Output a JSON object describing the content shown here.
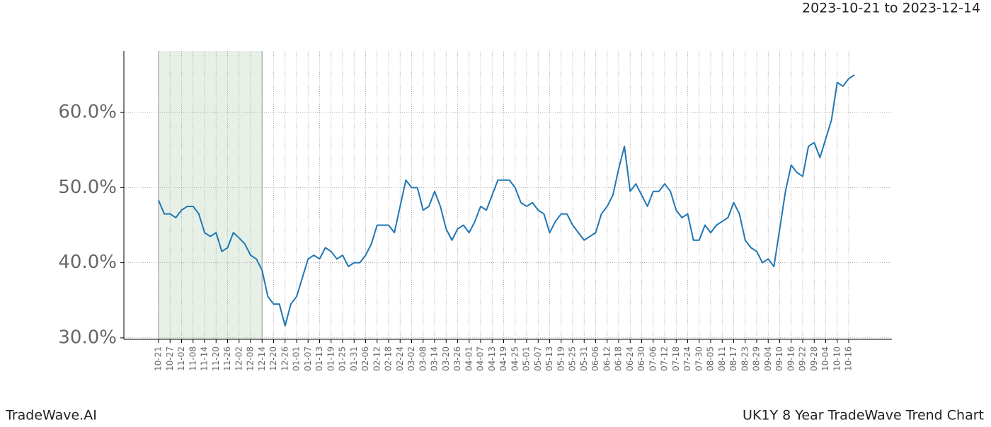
{
  "chart_data": {
    "type": "line",
    "title": "2023-10-21 to 2023-12-14",
    "footer_left": "TradeWave.AI",
    "footer_right": "UK1Y 8 Year TradeWave Trend Chart",
    "categories": [
      "10-21",
      null,
      "10-27",
      null,
      "11-02",
      null,
      "11-08",
      null,
      "11-14",
      null,
      "11-20",
      null,
      "11-26",
      null,
      "12-02",
      null,
      "12-08",
      null,
      "12-14",
      null,
      "12-20",
      null,
      "12-26",
      null,
      "01-01",
      null,
      "01-07",
      null,
      "01-13",
      null,
      "01-19",
      null,
      "01-25",
      null,
      "01-31",
      null,
      "02-06",
      null,
      "02-12",
      null,
      "02-18",
      null,
      "02-24",
      null,
      "03-02",
      null,
      "03-08",
      null,
      "03-14",
      null,
      "03-20",
      null,
      "03-26",
      null,
      "04-01",
      null,
      "04-07",
      null,
      "04-13",
      null,
      "04-19",
      null,
      "04-25",
      null,
      "05-01",
      null,
      "05-07",
      null,
      "05-13",
      null,
      "05-19",
      null,
      "05-25",
      null,
      "05-31",
      null,
      "06-06",
      null,
      "06-12",
      null,
      "06-18",
      null,
      "06-24",
      null,
      "06-30",
      null,
      "07-06",
      null,
      "07-12",
      null,
      "07-18",
      null,
      "07-24",
      null,
      "07-30",
      null,
      "08-05",
      null,
      "08-11",
      null,
      "08-17",
      null,
      "08-23",
      null,
      "08-29",
      null,
      "09-04",
      null,
      "09-10",
      null,
      "09-16",
      null,
      "09-22",
      null,
      "09-28",
      null,
      "10-04",
      null,
      "10-10",
      null,
      "10-16",
      null
    ],
    "series": [
      {
        "color": "#1f77b4",
        "values": [
          48.3,
          46.5,
          46.5,
          46.0,
          47.0,
          47.5,
          47.5,
          46.5,
          44.0,
          43.5,
          44.0,
          41.5,
          42.0,
          44.0,
          43.3,
          42.5,
          41.0,
          40.5,
          39.0,
          35.5,
          34.5,
          34.5,
          31.6,
          34.5,
          35.5,
          38.0,
          40.5,
          41.0,
          40.5,
          42.0,
          41.5,
          40.5,
          41.0,
          39.5,
          40.0,
          40.0,
          41.0,
          42.5,
          45.0,
          45.0,
          45.0,
          44.0,
          47.5,
          51.0,
          50.0,
          50.0,
          47.0,
          47.5,
          49.5,
          47.5,
          44.5,
          43.0,
          44.5,
          45.0,
          44.0,
          45.5,
          47.5,
          47.0,
          49.0,
          51.0,
          51.0,
          51.0,
          50.0,
          48.0,
          47.5,
          48.0,
          47.0,
          46.5,
          44.0,
          45.5,
          46.5,
          46.5,
          45.0,
          44.0,
          43.0,
          43.5,
          44.0,
          46.5,
          47.5,
          49.0,
          52.5,
          55.5,
          49.5,
          50.5,
          49.0,
          47.5,
          49.5,
          49.5,
          50.5,
          49.5,
          47.0,
          46.0,
          46.5,
          43.0,
          43.0,
          45.0,
          44.0,
          45.0,
          45.5,
          46.0,
          48.0,
          46.5,
          43.0,
          42.0,
          41.5,
          40.0,
          40.5,
          39.5,
          44.5,
          49.5,
          53.0,
          52.0,
          51.5,
          55.5,
          56.0,
          54.0,
          56.5,
          59.0,
          64.0,
          63.5,
          64.5,
          65.0
        ]
      }
    ],
    "shade_from": "10-21",
    "shade_to": "12-14",
    "shade_color": "#e6f0e6",
    "ylim": [
      29.8,
      68.2
    ],
    "yticks": [
      {
        "value": 30,
        "label": "30.0%"
      },
      {
        "value": 40,
        "label": "40.0%"
      },
      {
        "value": 50,
        "label": "50.0%"
      },
      {
        "value": 60,
        "label": "60.0%"
      }
    ],
    "grid": true
  }
}
